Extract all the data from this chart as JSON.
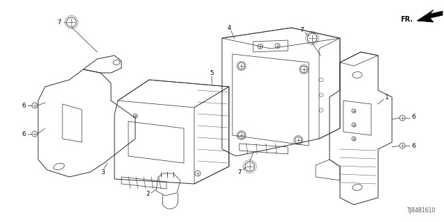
{
  "bg_color": "#ffffff",
  "fig_width": 6.4,
  "fig_height": 3.2,
  "dpi": 100,
  "diagram_code_text": "TJB4B1610",
  "line_color": "#2a2a2a",
  "label_fontsize": 6.5,
  "diagram_fontsize": 5.5
}
